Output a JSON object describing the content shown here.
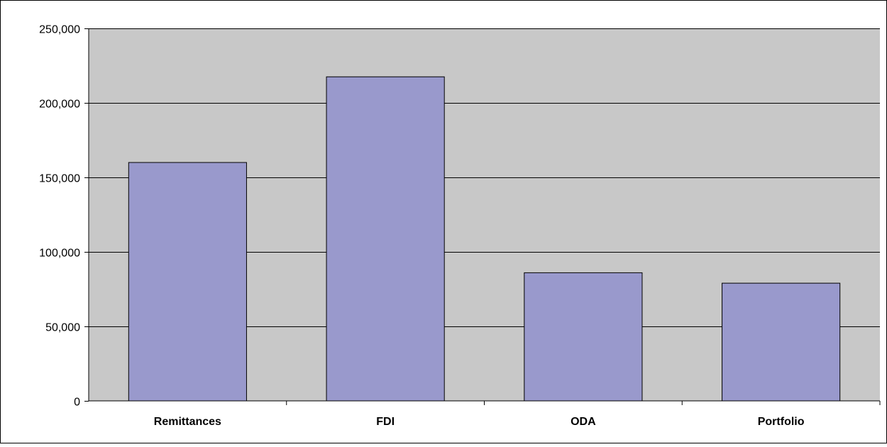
{
  "chart_data": {
    "type": "bar",
    "title": "",
    "xlabel": "",
    "ylabel": "",
    "categories": [
      "Remittances",
      "FDI",
      "ODA",
      "Portfolio"
    ],
    "values": [
      160000,
      217500,
      86000,
      79000
    ],
    "ylim": [
      0,
      250000
    ],
    "yticks": [
      0,
      50000,
      100000,
      150000,
      200000,
      250000
    ],
    "ytick_labels": [
      "0",
      "50,000",
      "100,000",
      "150,000",
      "200,000",
      "250,000"
    ],
    "grid": true,
    "legend": "none",
    "colors": {
      "bar_fill": "#9999cc",
      "bar_stroke": "#000000",
      "plot_background": "#c8c8c8",
      "gridline": "#000000"
    }
  }
}
